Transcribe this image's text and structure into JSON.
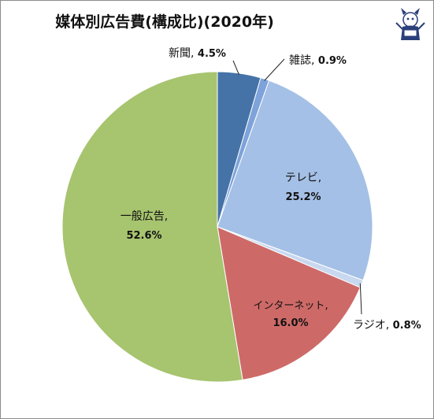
{
  "chart_data": {
    "type": "pie",
    "title": "媒体別広告費(構成比)(2020年)",
    "slices": [
      {
        "name": "新聞",
        "value": 4.5,
        "value_label": "4.5%",
        "color": "#4573a7"
      },
      {
        "name": "雑誌",
        "value": 0.9,
        "value_label": "0.9%",
        "color": "#7ea2da"
      },
      {
        "name": "テレビ",
        "value": 25.2,
        "value_label": "25.2%",
        "color": "#a4c0e6"
      },
      {
        "name": "ラジオ",
        "value": 0.8,
        "value_label": "0.8%",
        "color": "#c7d8ef"
      },
      {
        "name": "インターネット",
        "value": 16.0,
        "value_label": "16.0%",
        "color": "#cd6a68"
      },
      {
        "name": "一般広告",
        "value": 52.6,
        "value_label": "52.6%",
        "color": "#a7c46f"
      }
    ]
  },
  "icon": {
    "name": "mascot-icon"
  }
}
